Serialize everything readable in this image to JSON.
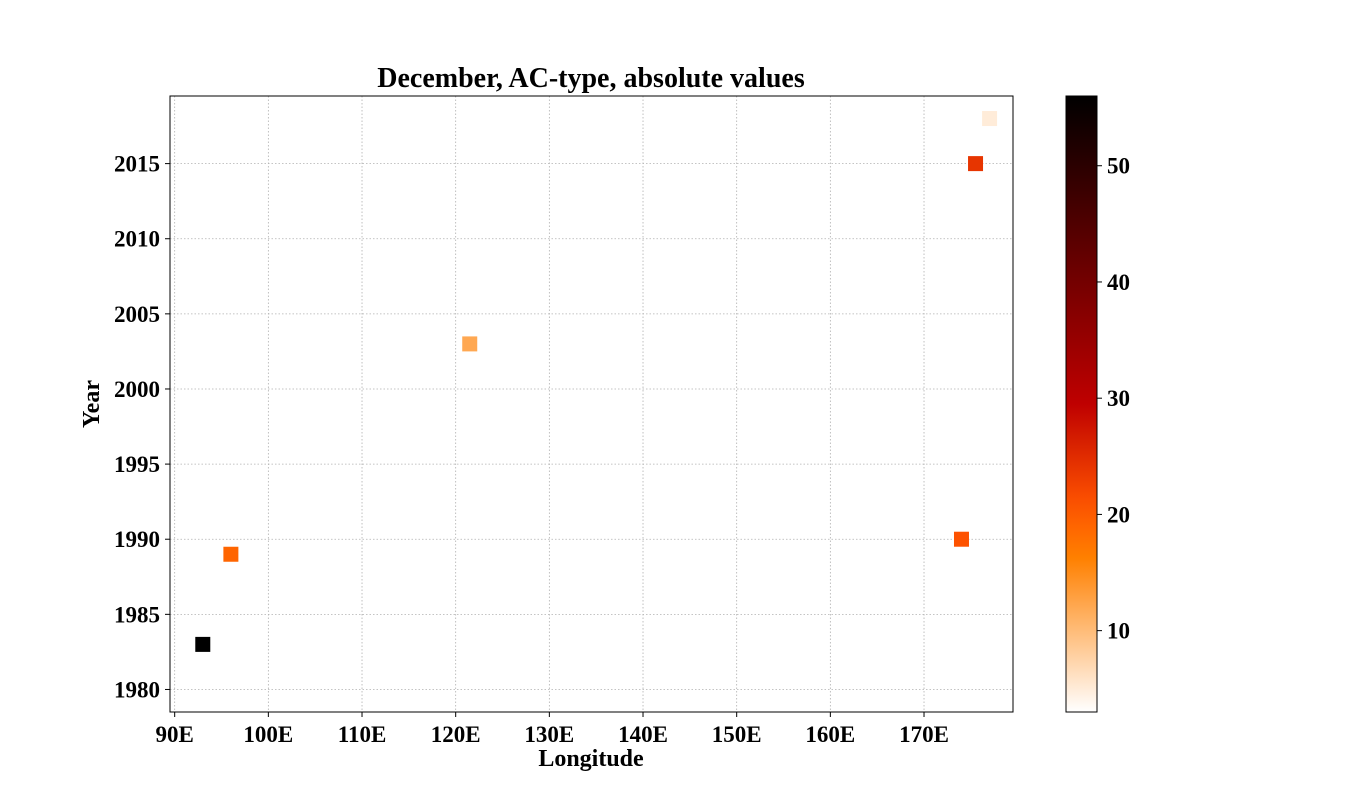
{
  "chart_data": {
    "type": "scatter",
    "title": "December, AC-type, absolute values",
    "xlabel": "Longitude",
    "ylabel": "Year",
    "xlim": [
      89.5,
      179.5
    ],
    "ylim": [
      1978.5,
      2019.5
    ],
    "x_ticks": [
      {
        "value": 90,
        "label": "90E"
      },
      {
        "value": 100,
        "label": "100E"
      },
      {
        "value": 110,
        "label": "110E"
      },
      {
        "value": 120,
        "label": "120E"
      },
      {
        "value": 130,
        "label": "130E"
      },
      {
        "value": 140,
        "label": "140E"
      },
      {
        "value": 150,
        "label": "150E"
      },
      {
        "value": 160,
        "label": "160E"
      },
      {
        "value": 170,
        "label": "170E"
      }
    ],
    "y_ticks": [
      {
        "value": 1980,
        "label": "1980"
      },
      {
        "value": 1985,
        "label": "1985"
      },
      {
        "value": 1990,
        "label": "1990"
      },
      {
        "value": 1995,
        "label": "1995"
      },
      {
        "value": 2000,
        "label": "2000"
      },
      {
        "value": 2005,
        "label": "2005"
      },
      {
        "value": 2010,
        "label": "2010"
      },
      {
        "value": 2015,
        "label": "2015"
      }
    ],
    "grid": true,
    "marker": "square",
    "points": [
      {
        "x": 93,
        "y": 1983,
        "value": 56
      },
      {
        "x": 96,
        "y": 1989,
        "value": 19
      },
      {
        "x": 121.5,
        "y": 2003,
        "value": 12
      },
      {
        "x": 174,
        "y": 1990,
        "value": 21
      },
      {
        "x": 175.5,
        "y": 2015,
        "value": 24
      },
      {
        "x": 177,
        "y": 2018,
        "value": 5
      }
    ],
    "colorbar": {
      "colormap": "gist_heat_r",
      "min": 3,
      "max": 56,
      "ticks": [
        10,
        20,
        30,
        40,
        50
      ]
    }
  }
}
